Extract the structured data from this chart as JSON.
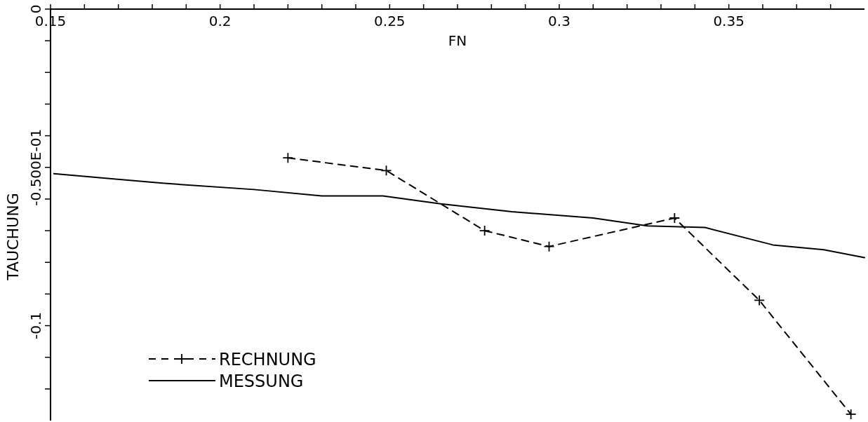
{
  "chart_data": {
    "type": "line",
    "xlabel": "FN",
    "ylabel": "TAUCHUNG",
    "xlim": [
      0.15,
      0.39
    ],
    "ylim": [
      -0.13,
      0
    ],
    "xticks": [
      {
        "value": 0.15,
        "label": "0.15"
      },
      {
        "value": 0.16,
        "label": null
      },
      {
        "value": 0.17,
        "label": null
      },
      {
        "value": 0.18,
        "label": null
      },
      {
        "value": 0.19,
        "label": null
      },
      0.2,
      {
        "value": 0.21,
        "label": null
      },
      {
        "value": 0.22,
        "label": null
      },
      {
        "value": 0.23,
        "label": null
      },
      {
        "value": 0.24,
        "label": null
      },
      0.25,
      {
        "value": 0.26,
        "label": null
      },
      {
        "value": 0.27,
        "label": null
      },
      {
        "value": 0.28,
        "label": null
      },
      {
        "value": 0.29,
        "label": null
      },
      0.3,
      {
        "value": 0.31,
        "label": null
      },
      {
        "value": 0.32,
        "label": null
      },
      {
        "value": 0.33,
        "label": null
      },
      {
        "value": 0.34,
        "label": null
      },
      0.35,
      {
        "value": 0.36,
        "label": null
      },
      {
        "value": 0.37,
        "label": null
      },
      {
        "value": 0.38,
        "label": null
      }
    ],
    "yticks": [
      0,
      {
        "value": -0.01,
        "label": null
      },
      {
        "value": -0.02,
        "label": null
      },
      {
        "value": -0.03,
        "label": null
      },
      {
        "value": -0.04,
        "label": null
      },
      {
        "value": -0.05,
        "label": "-0.500E-01"
      },
      {
        "value": -0.06,
        "label": null
      },
      {
        "value": -0.07,
        "label": null
      },
      {
        "value": -0.08,
        "label": null
      },
      {
        "value": -0.09,
        "label": null
      },
      -0.1,
      {
        "value": -0.11,
        "label": null
      },
      {
        "value": -0.12,
        "label": null
      }
    ],
    "legend": "bottom left",
    "grid": false,
    "series": [
      {
        "name": "RECHNUNG",
        "color": "#000000",
        "line_style": "dashed",
        "marker": "cross",
        "x": [
          0.22,
          0.249,
          0.278,
          0.297,
          0.334,
          0.359,
          0.386
        ],
        "values": [
          -0.047,
          -0.051,
          -0.07,
          -0.075,
          -0.066,
          -0.092,
          -0.128
        ]
      },
      {
        "name": "MESSUNG",
        "color": "#000000",
        "line_style": "solid",
        "marker": "none",
        "x": [
          0.151,
          0.183,
          0.21,
          0.23,
          0.248,
          0.265,
          0.286,
          0.31,
          0.326,
          0.343,
          0.363,
          0.378,
          0.39
        ],
        "values": [
          -0.052,
          -0.055,
          -0.057,
          -0.059,
          -0.059,
          -0.0615,
          -0.064,
          -0.066,
          -0.0685,
          -0.069,
          -0.0745,
          -0.076,
          -0.0785
        ]
      }
    ]
  }
}
